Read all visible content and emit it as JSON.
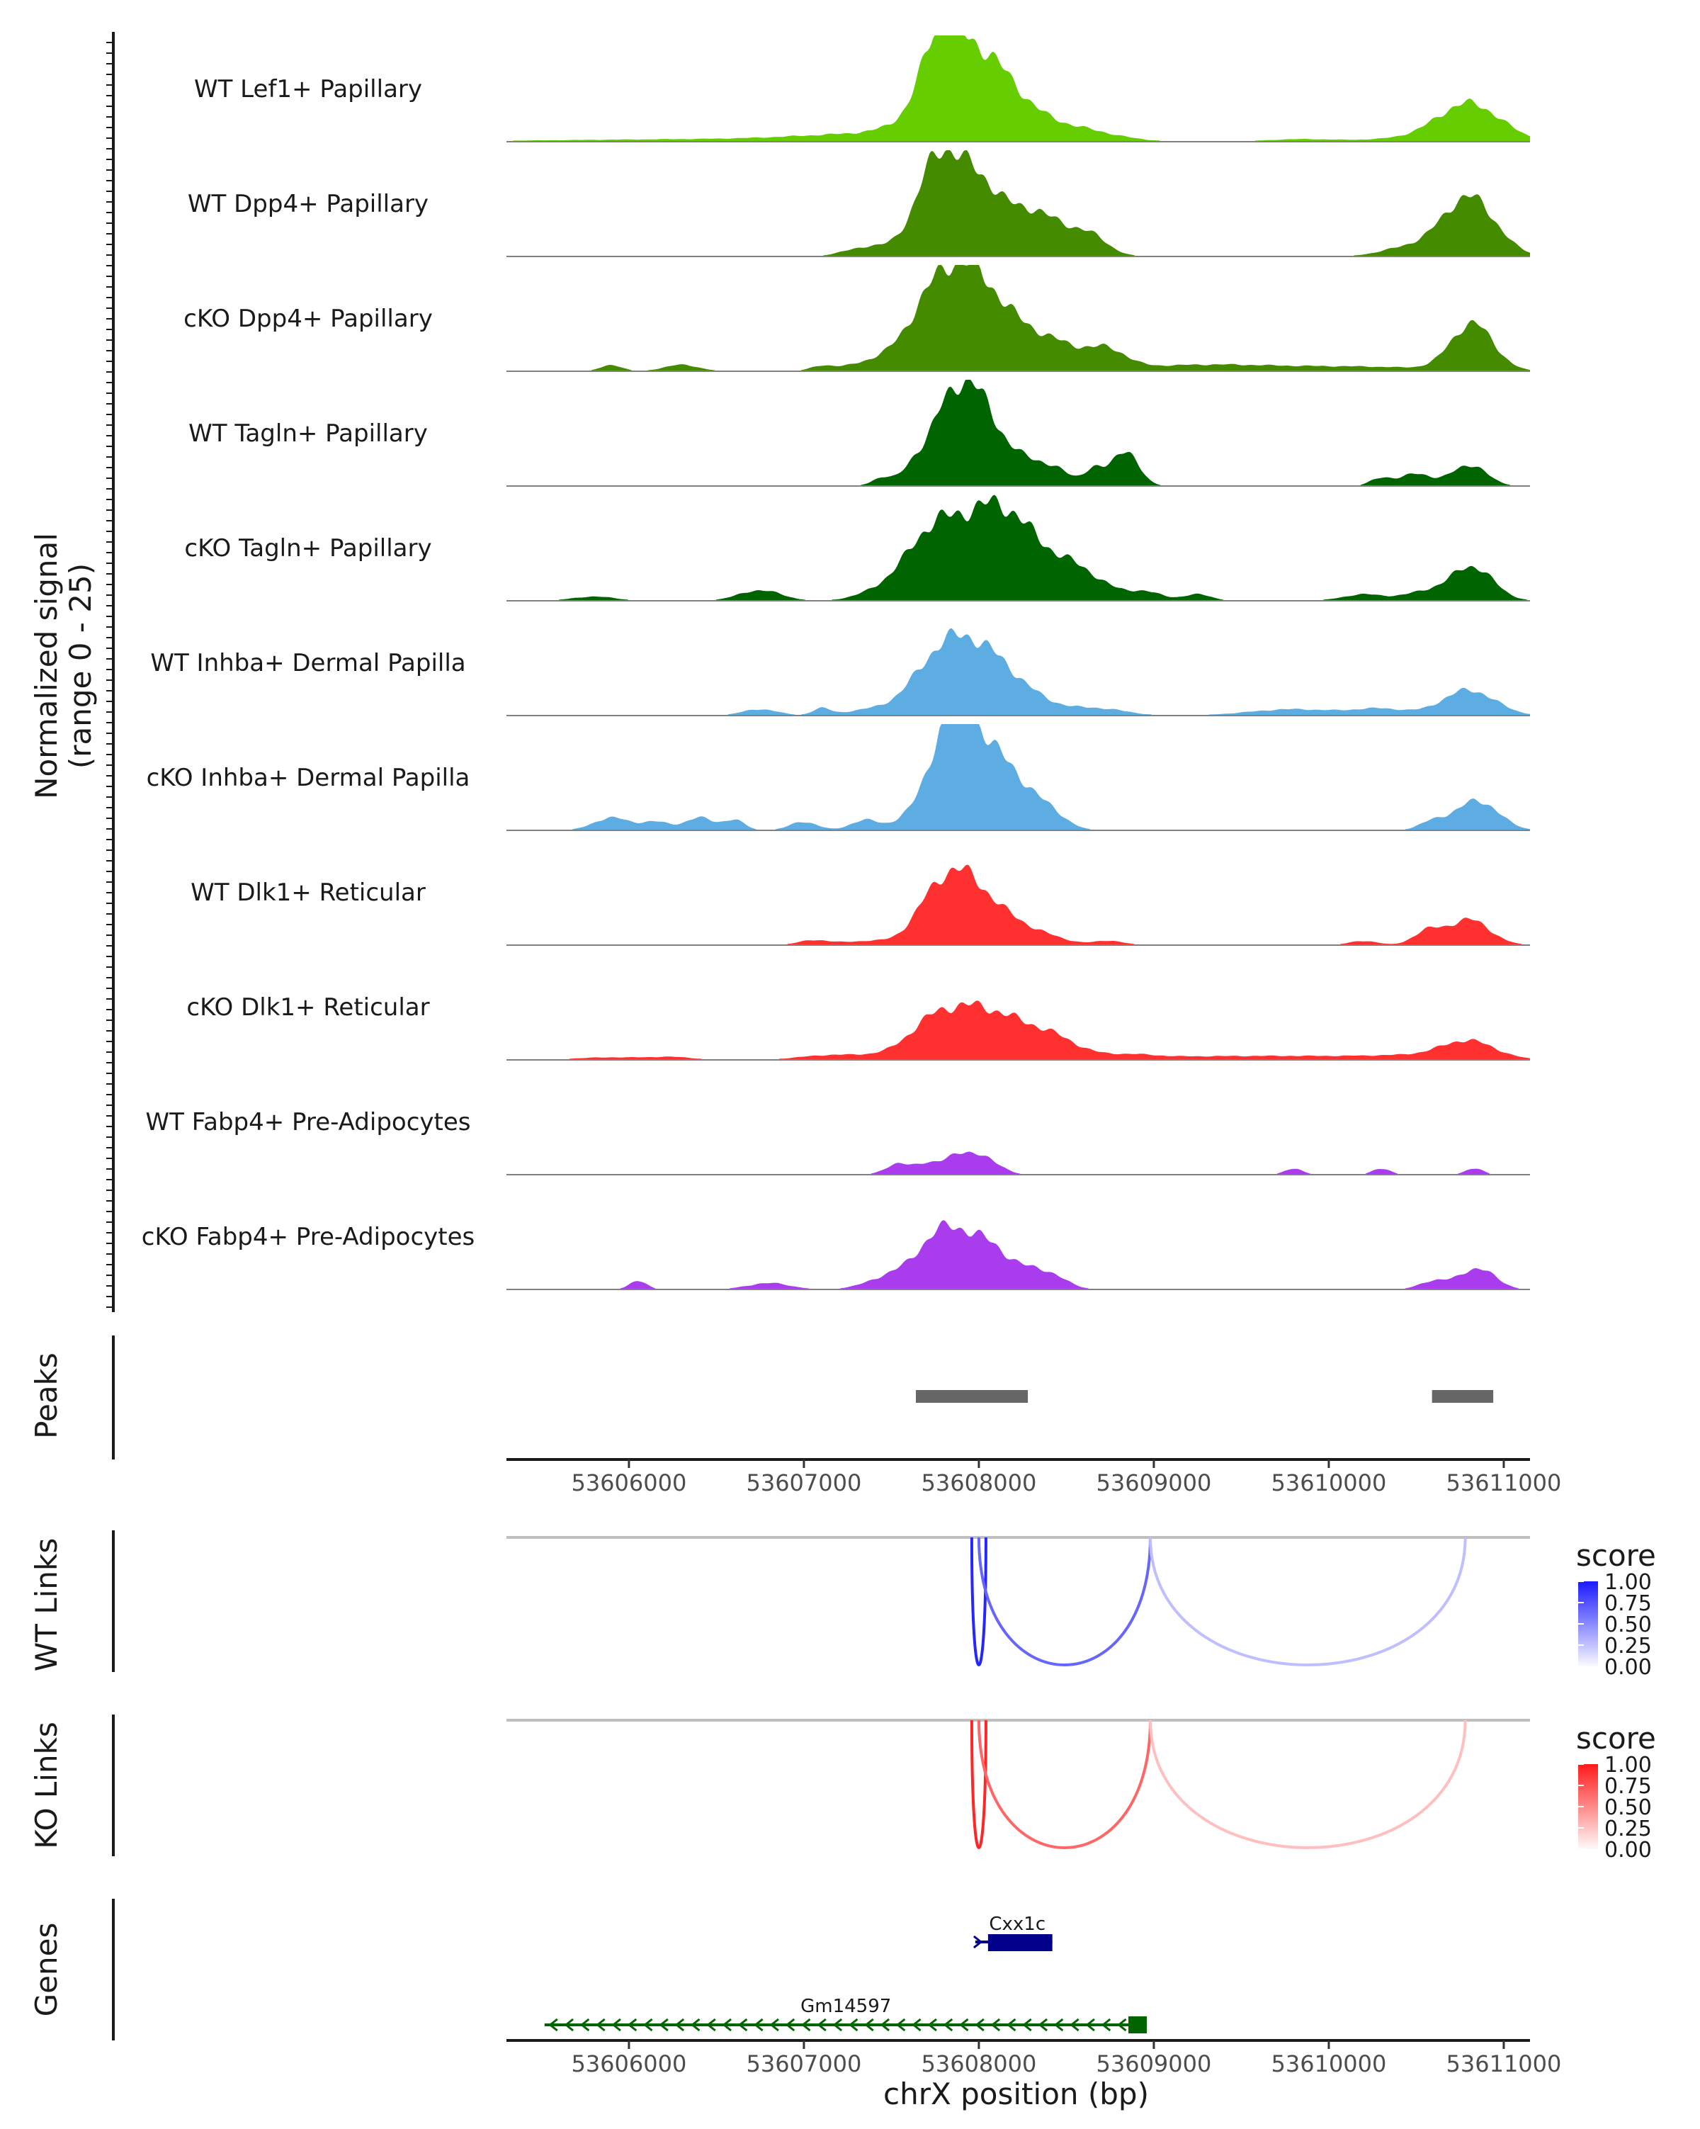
{
  "chart_data": {
    "type": "area",
    "region": "chrX",
    "xlabel": "chrX position (bp)",
    "xlim": [
      53605300,
      53611150
    ],
    "xticks": [
      53606000,
      53607000,
      53608000,
      53609000,
      53610000,
      53611000
    ],
    "xtick_labels": [
      "53606000",
      "53607000",
      "53608000",
      "53609000",
      "53610000",
      "53611000"
    ],
    "coverage": {
      "ylabel": "Normalized signal",
      "ylabel_range": "(range 0 - 25)",
      "ylim": [
        0,
        25
      ],
      "tracks": [
        {
          "name": "WT Lef1+ Papillary",
          "color": "#66CD00",
          "peaks": [
            [
              53606500,
              900,
              0.6
            ],
            [
              53607400,
              400,
              1.5
            ],
            [
              53607770,
              90,
              12
            ],
            [
              53607950,
              220,
              20
            ],
            [
              53608250,
              300,
              3
            ],
            [
              53608600,
              200,
              1.5
            ],
            [
              53609850,
              200,
              0.6
            ],
            [
              53610400,
              200,
              0.6
            ],
            [
              53610800,
              180,
              9
            ]
          ]
        },
        {
          "name": "WT Dpp4+ Papillary",
          "color": "#458B00",
          "peaks": [
            [
              53607350,
              120,
              2
            ],
            [
              53607600,
              80,
              1.5
            ],
            [
              53607750,
              90,
              10
            ],
            [
              53607930,
              200,
              21
            ],
            [
              53608300,
              100,
              4
            ],
            [
              53608450,
              150,
              6
            ],
            [
              53608650,
              100,
              3
            ],
            [
              53610450,
              150,
              2
            ],
            [
              53610800,
              150,
              14
            ]
          ]
        },
        {
          "name": "cKO Dpp4+ Papillary",
          "color": "#458B00",
          "peaks": [
            [
              53605900,
              60,
              1.5
            ],
            [
              53606300,
              100,
              1.5
            ],
            [
              53607100,
              60,
              1
            ],
            [
              53607500,
              200,
              3
            ],
            [
              53607700,
              120,
              5
            ],
            [
              53607900,
              180,
              22
            ],
            [
              53608200,
              200,
              7
            ],
            [
              53608500,
              200,
              4
            ],
            [
              53608750,
              100,
              3
            ],
            [
              53609300,
              400,
              1.5
            ],
            [
              53610200,
              400,
              1
            ],
            [
              53610820,
              120,
              11
            ]
          ]
        },
        {
          "name": "WT Tagln+ Papillary",
          "color": "#006400",
          "peaks": [
            [
              53607450,
              60,
              2
            ],
            [
              53607620,
              60,
              3
            ],
            [
              53607780,
              100,
              6
            ],
            [
              53607950,
              150,
              23
            ],
            [
              53608250,
              100,
              3.5
            ],
            [
              53608420,
              100,
              4
            ],
            [
              53608650,
              50,
              3
            ],
            [
              53608800,
              100,
              4
            ],
            [
              53608850,
              60,
              5
            ],
            [
              53610300,
              60,
              2
            ],
            [
              53610500,
              80,
              3
            ],
            [
              53610800,
              100,
              5
            ]
          ]
        },
        {
          "name": "cKO Tagln+ Papillary",
          "color": "#006400",
          "peaks": [
            [
              53605800,
              120,
              1
            ],
            [
              53606750,
              120,
              2.5
            ],
            [
              53607500,
              150,
              3
            ],
            [
              53607700,
              120,
              6
            ],
            [
              53607900,
              200,
              16
            ],
            [
              53608150,
              150,
              10
            ],
            [
              53608350,
              200,
              8
            ],
            [
              53608600,
              150,
              4
            ],
            [
              53608950,
              100,
              2
            ],
            [
              53609250,
              80,
              1.5
            ],
            [
              53610200,
              120,
              1.5
            ],
            [
              53610550,
              120,
              2
            ],
            [
              53610820,
              120,
              8
            ]
          ]
        },
        {
          "name": "WT Inhba+ Dermal Papilla",
          "color": "#5DADE2",
          "peaks": [
            [
              53606750,
              100,
              1.5
            ],
            [
              53607100,
              50,
              1.5
            ],
            [
              53607500,
              200,
              2
            ],
            [
              53607700,
              120,
              5
            ],
            [
              53607880,
              150,
              14
            ],
            [
              53608100,
              150,
              8
            ],
            [
              53608300,
              180,
              3
            ],
            [
              53608700,
              150,
              1.5
            ],
            [
              53609800,
              250,
              1.5
            ],
            [
              53610300,
              150,
              1.5
            ],
            [
              53610800,
              150,
              6
            ]
          ]
        },
        {
          "name": "cKO Inhba+ Dermal Papilla",
          "color": "#5DADE2",
          "peaks": [
            [
              53605900,
              100,
              3
            ],
            [
              53606150,
              80,
              2
            ],
            [
              53606400,
              80,
              3
            ],
            [
              53606600,
              60,
              2.5
            ],
            [
              53607000,
              80,
              2
            ],
            [
              53607350,
              80,
              2.5
            ],
            [
              53607600,
              80,
              3
            ],
            [
              53607800,
              100,
              10
            ],
            [
              53607900,
              120,
              24
            ],
            [
              53608150,
              130,
              14
            ],
            [
              53608400,
              100,
              4
            ],
            [
              53610600,
              80,
              2
            ],
            [
              53610850,
              120,
              7
            ]
          ]
        },
        {
          "name": "WT Dlk1+ Reticular",
          "color": "#FF3030",
          "peaks": [
            [
              53607050,
              80,
              1
            ],
            [
              53607400,
              200,
              1
            ],
            [
              53607700,
              100,
              4
            ],
            [
              53607870,
              140,
              15
            ],
            [
              53608100,
              150,
              6
            ],
            [
              53608350,
              150,
              2
            ],
            [
              53608750,
              80,
              1
            ],
            [
              53610200,
              80,
              1
            ],
            [
              53610560,
              80,
              3
            ],
            [
              53610800,
              120,
              6
            ]
          ]
        },
        {
          "name": "cKO Dlk1+ Reticular",
          "color": "#FF3030",
          "peaks": [
            [
              53605900,
              200,
              0.6
            ],
            [
              53606250,
              120,
              0.6
            ],
            [
              53607100,
              150,
              0.6
            ],
            [
              53607400,
              250,
              1
            ],
            [
              53607700,
              120,
              3
            ],
            [
              53607900,
              200,
              10
            ],
            [
              53608200,
              200,
              6
            ],
            [
              53608450,
              150,
              3
            ],
            [
              53608850,
              150,
              1
            ],
            [
              53609200,
              300,
              0.6
            ],
            [
              53609800,
              350,
              0.8
            ],
            [
              53610500,
              300,
              1
            ],
            [
              53610800,
              150,
              4
            ]
          ]
        },
        {
          "name": "WT Fabp4+ Pre-Adipocytes",
          "color": "#A93DEE",
          "peaks": [
            [
              53607550,
              80,
              2.5
            ],
            [
              53607700,
              60,
              2
            ],
            [
              53607880,
              80,
              5
            ],
            [
              53608050,
              80,
              3.5
            ],
            [
              53609800,
              50,
              1.5
            ],
            [
              53610300,
              50,
              1.5
            ],
            [
              53610830,
              50,
              1.5
            ]
          ]
        },
        {
          "name": "cKO Fabp4+ Pre-Adipocytes",
          "color": "#A93DEE",
          "peaks": [
            [
              53606050,
              50,
              2
            ],
            [
              53606800,
              120,
              1.5
            ],
            [
              53607550,
              150,
              4
            ],
            [
              53607750,
              100,
              6
            ],
            [
              53607920,
              150,
              11
            ],
            [
              53608150,
              150,
              5
            ],
            [
              53608400,
              100,
              3
            ],
            [
              53610600,
              80,
              2
            ],
            [
              53610850,
              100,
              5
            ]
          ]
        }
      ]
    },
    "peaks": {
      "label": "Peaks",
      "color": "#666666",
      "intervals": [
        [
          53607640,
          53608280
        ],
        [
          53610590,
          53610940
        ]
      ]
    },
    "links": [
      {
        "label": "WT Links",
        "color": "#0000FF",
        "items": [
          [
            53608000,
            53608000,
            0.85
          ],
          [
            53608000,
            53608980,
            0.6
          ],
          [
            53608980,
            53610780,
            0.25
          ]
        ]
      },
      {
        "label": "KO Links",
        "color": "#FF0000",
        "items": [
          [
            53608000,
            53608000,
            0.85
          ],
          [
            53608000,
            53608980,
            0.6
          ],
          [
            53608980,
            53610780,
            0.25
          ]
        ]
      }
    ],
    "legend": {
      "title": "score",
      "ticks": [
        "1.00",
        "0.75",
        "0.50",
        "0.25",
        "0.00"
      ]
    },
    "genes": {
      "label": "Genes",
      "items": [
        {
          "name": "Cxx1c",
          "start": 53608020,
          "end": 53608420,
          "color": "#00008B",
          "strand": "+"
        },
        {
          "name": "Gm14597",
          "start": 53605550,
          "end": 53608960,
          "color": "#006400",
          "strand": "-"
        }
      ]
    }
  }
}
